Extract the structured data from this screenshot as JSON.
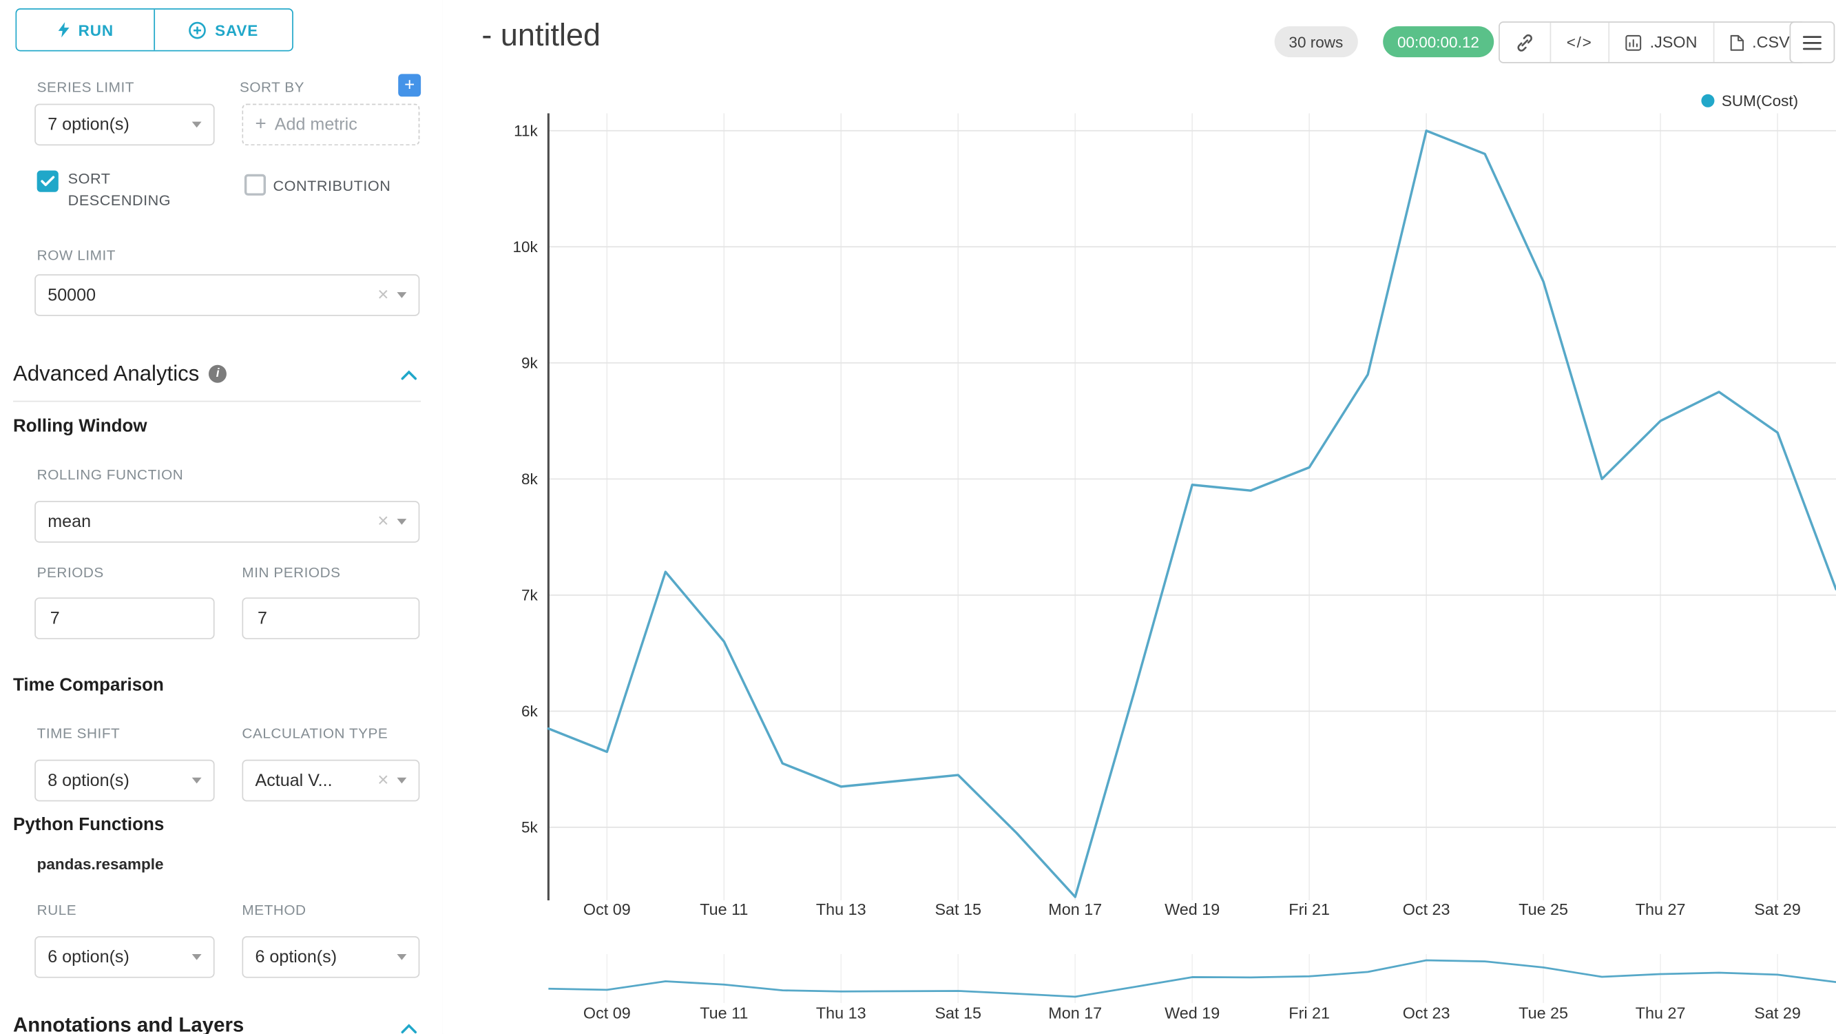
{
  "colors": {
    "accent": "#20A7C9",
    "success_badge": "#5AC189",
    "add_button_blue": "#4493E8",
    "line": "#56A8C8",
    "legend_dot": "#21A7C9"
  },
  "icons": {
    "plus": "+",
    "code": "</>",
    "clear": "×"
  },
  "panel": {
    "run_label": "RUN",
    "save_label": "SAVE",
    "series_limit": {
      "label": "SERIES LIMIT",
      "value": "7 option(s)"
    },
    "sort_by": {
      "label": "SORT BY",
      "placeholder": "Add metric"
    },
    "sort_descending": {
      "label": "SORT DESCENDING",
      "checked": true
    },
    "contribution": {
      "label": "CONTRIBUTION",
      "checked": false
    },
    "row_limit": {
      "label": "ROW LIMIT",
      "value": "50000"
    },
    "advanced_analytics": {
      "title": "Advanced Analytics"
    },
    "rolling_window": {
      "title": "Rolling Window",
      "rolling_function": {
        "label": "ROLLING FUNCTION",
        "value": "mean"
      },
      "periods": {
        "label": "PERIODS",
        "value": "7"
      },
      "min_periods": {
        "label": "MIN PERIODS",
        "value": "7"
      }
    },
    "time_comparison": {
      "title": "Time Comparison",
      "time_shift": {
        "label": "TIME SHIFT",
        "value": "8 option(s)"
      },
      "calculation_type": {
        "label": "CALCULATION TYPE",
        "value": "Actual V..."
      }
    },
    "python_functions": {
      "title": "Python Functions",
      "subtitle": "pandas.resample",
      "rule": {
        "label": "RULE",
        "value": "6 option(s)"
      },
      "method": {
        "label": "METHOD",
        "value": "6 option(s)"
      }
    },
    "annotations": {
      "title": "Annotations and Layers"
    }
  },
  "header": {
    "title": "- untitled",
    "rows_badge": "30 rows",
    "timer_badge": "00:00:00.12",
    "json_label": ".JSON",
    "csv_label": ".CSV"
  },
  "chart_data": {
    "type": "line",
    "title": "",
    "legend": {
      "label": "SUM(Cost)",
      "color": "#21A7C9"
    },
    "x": [
      "Oct 08",
      "Oct 09",
      "Oct 10",
      "Oct 11",
      "Oct 12",
      "Oct 13",
      "Oct 14",
      "Oct 15",
      "Oct 16",
      "Oct 17",
      "Oct 18",
      "Oct 19",
      "Oct 20",
      "Oct 21",
      "Oct 22",
      "Oct 23",
      "Oct 24",
      "Oct 25",
      "Oct 26",
      "Oct 27",
      "Oct 28",
      "Oct 29",
      "Oct 30"
    ],
    "series": [
      {
        "name": "SUM(Cost)",
        "color": "#56A8C8",
        "values": [
          5850,
          5650,
          7200,
          6600,
          5550,
          5350,
          5400,
          5450,
          4950,
          4400,
          6150,
          7950,
          7900,
          8100,
          8900,
          11000,
          10800,
          9700,
          8000,
          8500,
          8750,
          8400,
          7050
        ]
      }
    ],
    "x_tick_indices": [
      1,
      3,
      5,
      7,
      9,
      11,
      13,
      15,
      17,
      19,
      21
    ],
    "x_tick_labels": [
      "Oct 09",
      "Tue 11",
      "Thu 13",
      "Sat 15",
      "Mon 17",
      "Wed 19",
      "Fri 21",
      "Oct 23",
      "Tue 25",
      "Thu 27",
      "Sat 29"
    ],
    "y_ticks": [
      5000,
      6000,
      7000,
      8000,
      9000,
      10000,
      11000
    ],
    "y_tick_labels": [
      "5k",
      "6k",
      "7k",
      "8k",
      "9k",
      "10k",
      "11k"
    ],
    "ylim": [
      4370,
      11150
    ],
    "grid": true,
    "legend_position": "top-right",
    "mini_range_chart": true
  }
}
